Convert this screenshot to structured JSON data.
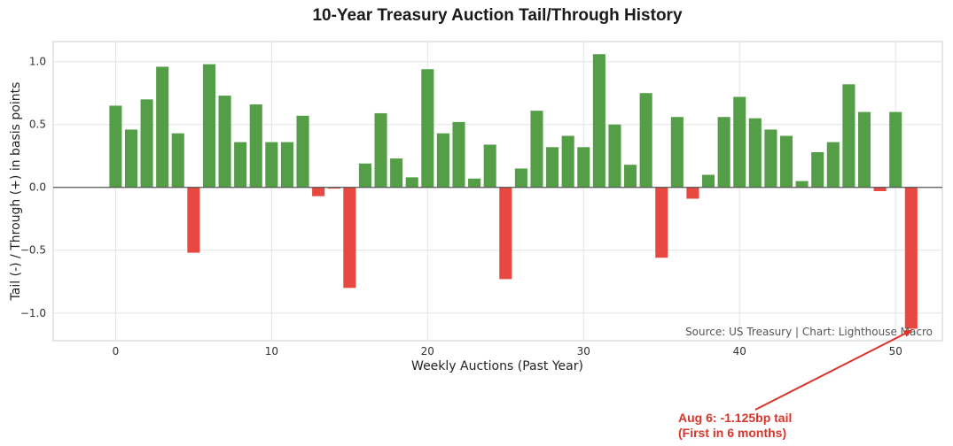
{
  "chart_data": {
    "type": "bar",
    "title": "10-Year Treasury Auction Tail/Through History",
    "xlabel": "Weekly Auctions (Past Year)",
    "ylabel": "Tail (-) / Through (+) in basis points",
    "xlim": [
      -4,
      53
    ],
    "ylim": [
      -1.22,
      1.16
    ],
    "grid": true,
    "x_ticks": [
      0,
      10,
      20,
      30,
      40,
      50
    ],
    "y_ticks": [
      -1.0,
      -0.5,
      0.0,
      0.5,
      1.0
    ],
    "y_tick_labels": [
      "−1.0",
      "−0.5",
      "0.0",
      "0.5",
      "1.0"
    ],
    "x_tick_labels": [
      "0",
      "10",
      "20",
      "30",
      "40",
      "50"
    ],
    "x": [
      0,
      1,
      2,
      3,
      4,
      5,
      6,
      7,
      8,
      9,
      10,
      11,
      12,
      13,
      14,
      15,
      16,
      17,
      18,
      19,
      20,
      21,
      22,
      23,
      24,
      25,
      26,
      27,
      28,
      29,
      30,
      31,
      32,
      33,
      34,
      35,
      36,
      37,
      38,
      39,
      40,
      41,
      42,
      43,
      44,
      45,
      46,
      47,
      48,
      49,
      50,
      51
    ],
    "values": [
      0.65,
      0.46,
      0.7,
      0.96,
      0.43,
      -0.52,
      0.98,
      0.73,
      0.36,
      0.66,
      0.36,
      0.36,
      0.57,
      -0.07,
      -0.01,
      -0.8,
      0.19,
      0.59,
      0.23,
      0.08,
      0.94,
      0.43,
      0.52,
      0.07,
      0.34,
      -0.73,
      0.15,
      0.61,
      0.32,
      0.41,
      0.32,
      1.06,
      0.5,
      0.18,
      0.75,
      -0.56,
      0.56,
      -0.09,
      0.1,
      0.56,
      0.72,
      0.55,
      0.46,
      0.41,
      0.05,
      0.28,
      0.36,
      0.82,
      0.6,
      -0.03,
      0.6,
      -1.125
    ],
    "positive_color": "#559e48",
    "negative_color": "#e8483f",
    "source_note": "Source: US Treasury | Chart: Lighthouse Macro",
    "annotation": {
      "target_index": 51,
      "target_value": -1.125,
      "line1": "Aug 6: -1.125bp tail",
      "line2": "(First in 6 months)",
      "color": "#d9352b"
    }
  }
}
